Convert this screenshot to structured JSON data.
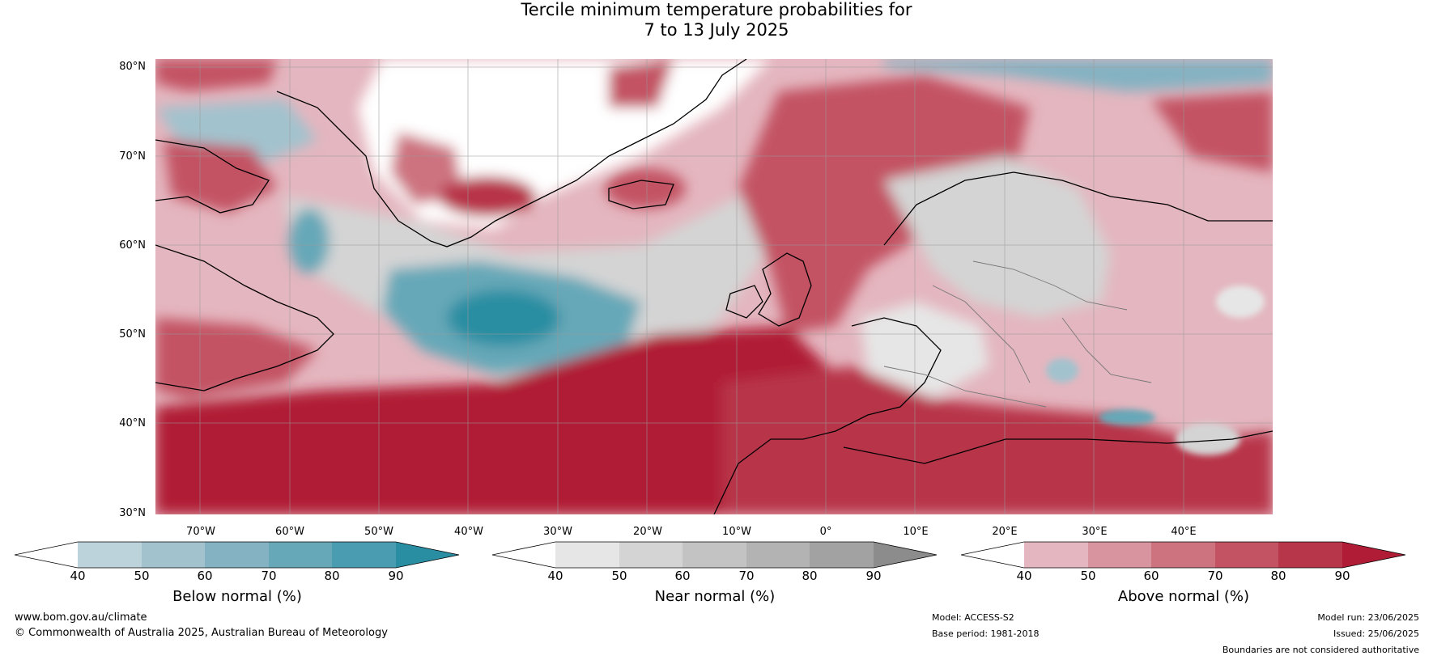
{
  "title": {
    "line1": "Tercile minimum temperature probabilities for",
    "line2": "7 to 13 July 2025"
  },
  "map": {
    "lat_labels": [
      "80°N",
      "70°N",
      "60°N",
      "50°N",
      "40°N",
      "30°N"
    ],
    "lon_labels": [
      "70°W",
      "60°W",
      "50°W",
      "40°W",
      "30°W",
      "20°W",
      "10°W",
      "0°",
      "10°E",
      "20°E",
      "30°E",
      "40°E"
    ]
  },
  "colorbars": [
    {
      "title": "Below normal (%)",
      "ticks": [
        "40",
        "50",
        "60",
        "70",
        "80",
        "90"
      ],
      "colors": [
        "#ffffff",
        "#bdd3dc",
        "#a2c2cd",
        "#84b2c2",
        "#66a8b8",
        "#4a9cb0",
        "#2a8ea3"
      ]
    },
    {
      "title": "Near normal (%)",
      "ticks": [
        "40",
        "50",
        "60",
        "70",
        "80",
        "90"
      ],
      "colors": [
        "#ffffff",
        "#e6e6e6",
        "#d4d4d4",
        "#c3c3c3",
        "#b3b3b3",
        "#a2a2a2",
        "#8c8c8c"
      ]
    },
    {
      "title": "Above normal (%)",
      "ticks": [
        "40",
        "50",
        "60",
        "70",
        "80",
        "90"
      ],
      "colors": [
        "#ffffff",
        "#e4b6bf",
        "#d8959f",
        "#cd7380",
        "#c35363",
        "#b8364a",
        "#b01c35"
      ]
    }
  ],
  "footer": {
    "website": "www.bom.gov.au/climate",
    "copyright": "© Commonwealth of Australia 2025, Australian Bureau of Meteorology",
    "model": "Model: ACCESS-S2",
    "base_period": "Base period: 1981-2018",
    "model_run": "Model run: 23/06/2025",
    "issued": "Issued: 25/06/2025",
    "disclaimer": "Boundaries are not considered authoritative"
  }
}
